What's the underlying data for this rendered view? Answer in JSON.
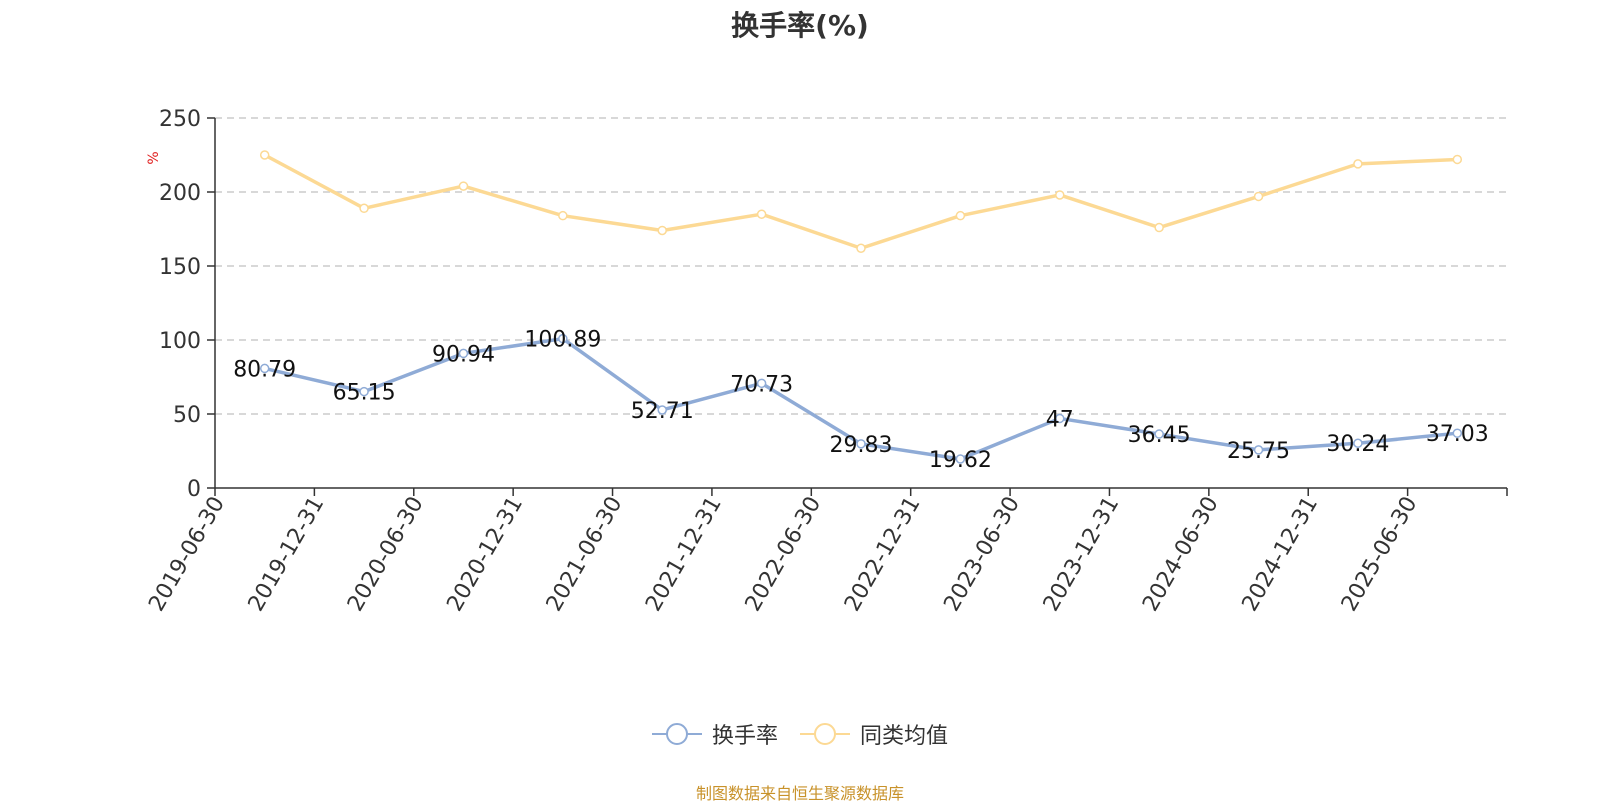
{
  "chart_data": {
    "type": "line",
    "title": "换手率(%)",
    "ylabel": "%",
    "ylim": [
      0,
      250
    ],
    "yticks": [
      0,
      50,
      100,
      150,
      200,
      250
    ],
    "grid": true,
    "legend_position": "bottom",
    "categories": [
      "2019-06-30",
      "2019-12-31",
      "2020-06-30",
      "2020-12-31",
      "2021-06-30",
      "2021-12-31",
      "2022-06-30",
      "2022-12-31",
      "2023-06-30",
      "2023-12-31",
      "2024-06-30",
      "2024-12-31",
      "2025-06-30"
    ],
    "series": [
      {
        "name": "换手率",
        "color": "#8fabd6",
        "labels": [
          "80.79",
          "65.15",
          "90.94",
          "100.89",
          "52.71",
          "70.73",
          "29.83",
          "19.62",
          "47",
          "36.45",
          "25.75",
          "30.24",
          "37.03"
        ],
        "values": [
          80.79,
          65.15,
          90.94,
          100.89,
          52.71,
          70.73,
          29.83,
          19.62,
          47,
          36.45,
          25.75,
          30.24,
          37.03
        ]
      },
      {
        "name": "同类均值",
        "color": "#fcd994",
        "values": [
          225,
          189,
          204,
          184,
          174,
          185,
          162,
          184,
          198,
          176,
          197,
          219,
          222
        ]
      }
    ]
  },
  "footer": "制图数据来自恒生聚源数据库"
}
